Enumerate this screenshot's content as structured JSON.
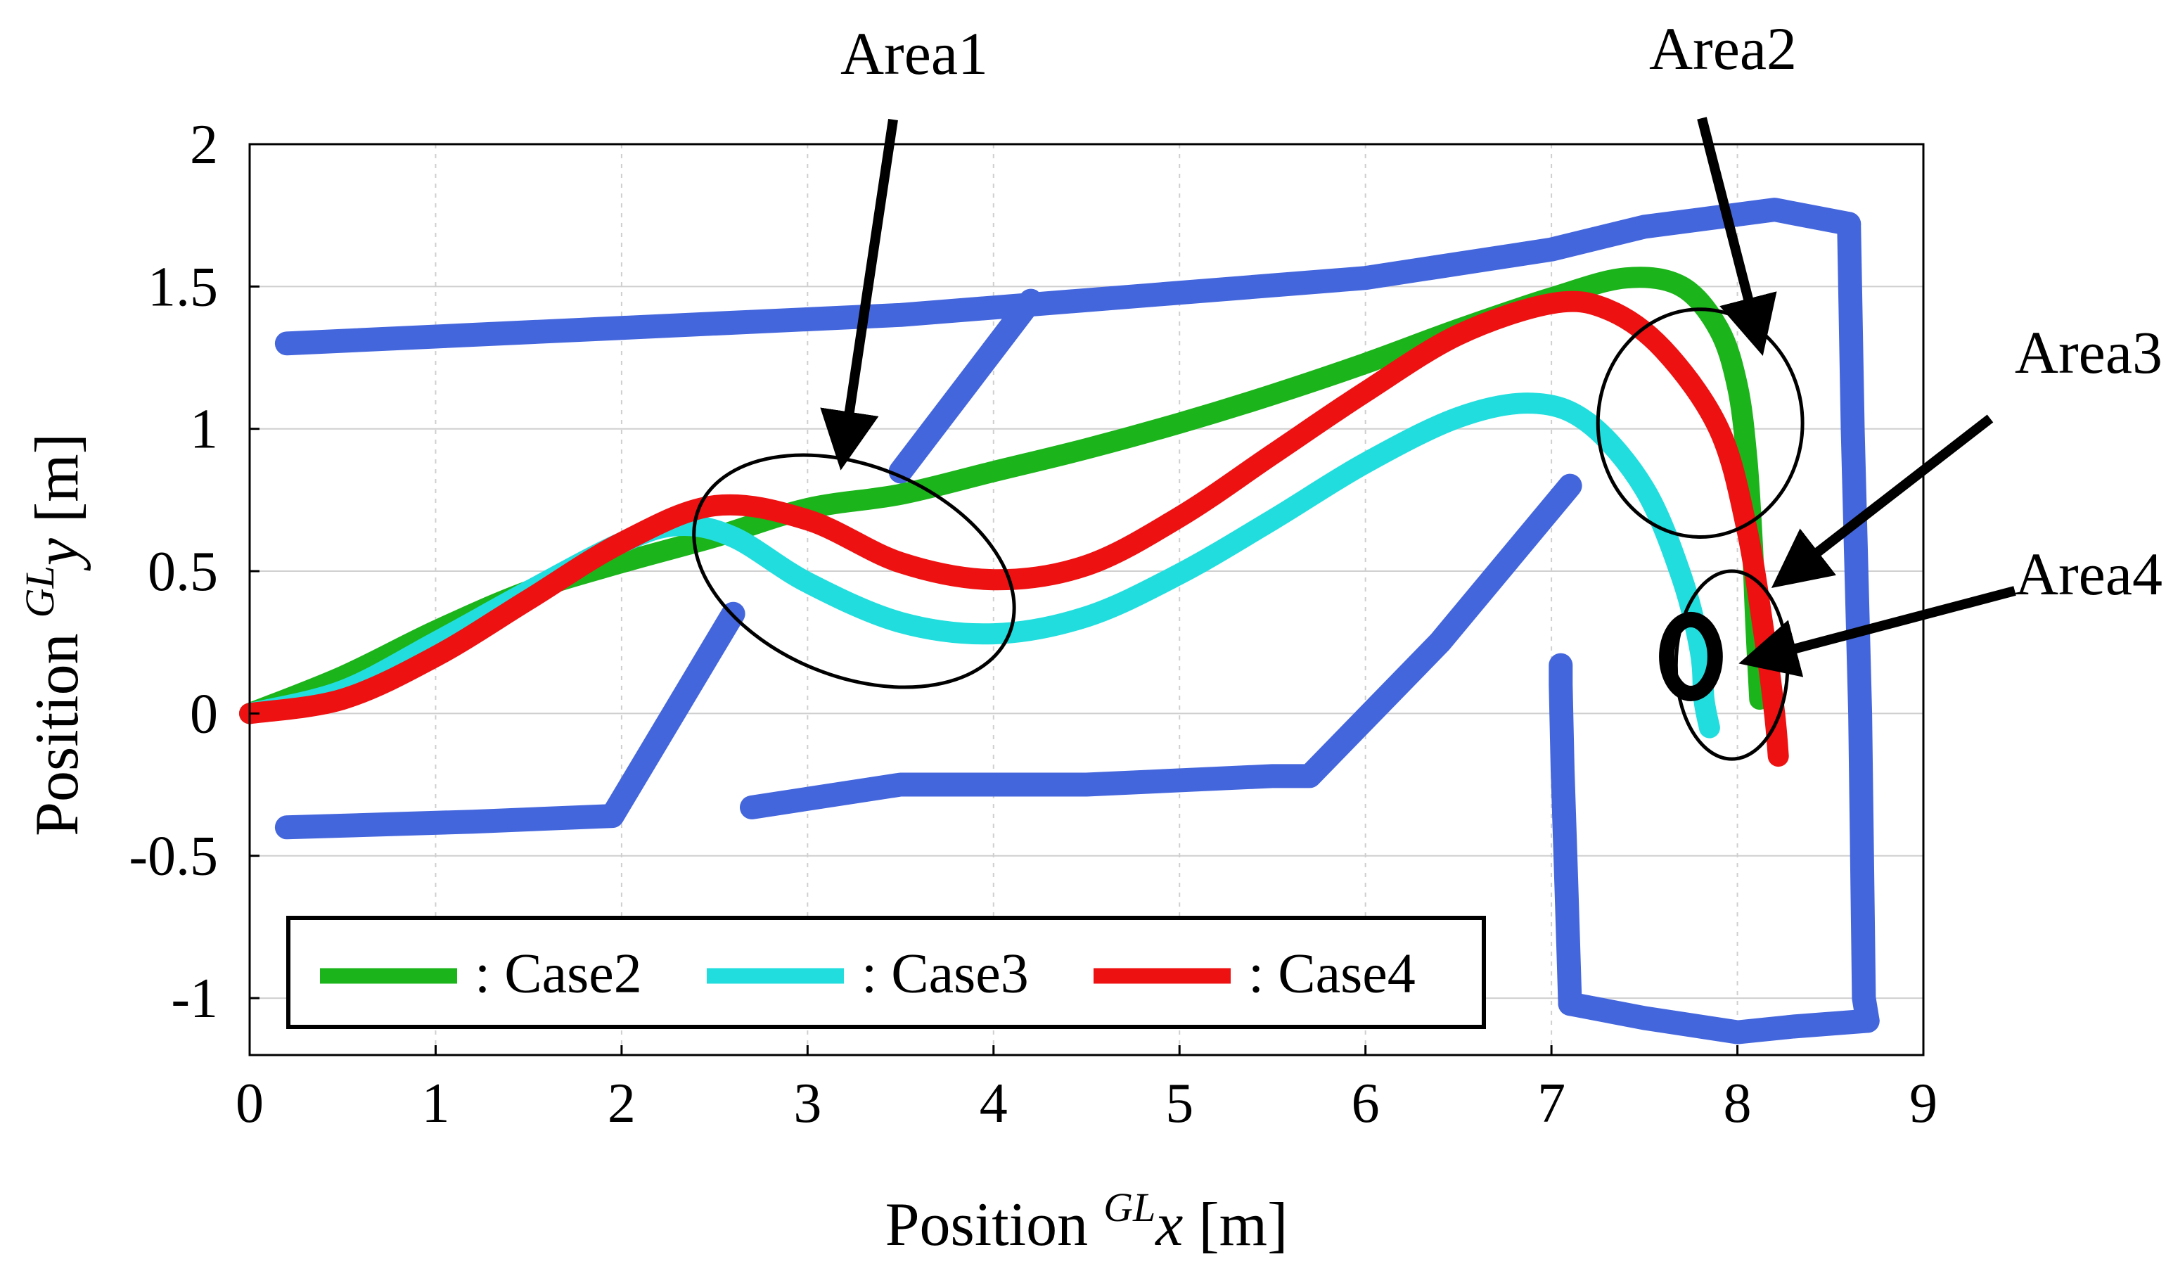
{
  "chart_data": {
    "type": "line",
    "title": "",
    "xlabel": "Position ᴳᴸx [m]",
    "ylabel": "Position ᴳᴸy [m]",
    "xlabel_parts": {
      "prefix": "Position ",
      "sup": "GL",
      "var": "x",
      "unit": " [m]"
    },
    "ylabel_parts": {
      "prefix": "Position ",
      "sup": "GL",
      "var": "y",
      "unit": " [m]"
    },
    "xlim": [
      0,
      9
    ],
    "ylim": [
      -1.2,
      2
    ],
    "grid": true,
    "xticks": [
      0,
      1,
      2,
      3,
      4,
      5,
      6,
      7,
      8,
      9
    ],
    "xtick_labels": [
      "0",
      "1",
      "2",
      "3",
      "4",
      "5",
      "6",
      "7",
      "8",
      "9"
    ],
    "yticks": [
      -1,
      -0.5,
      0,
      0.5,
      1,
      1.5,
      2
    ],
    "ytick_labels": [
      "-1",
      "-0.5",
      "0",
      "0.5",
      "1",
      "1.5",
      "2"
    ],
    "legend_position": "bottom-left",
    "series": [
      {
        "name": "Case2",
        "label": ": Case2",
        "color": "#1bb41b",
        "x": [
          0,
          0.5,
          1.0,
          1.5,
          2.0,
          2.5,
          3.0,
          3.5,
          4.0,
          4.5,
          5.0,
          5.5,
          6.0,
          6.5,
          7.0,
          7.4,
          7.7,
          7.9,
          8.0,
          8.05,
          8.08,
          8.1,
          8.12
        ],
        "y": [
          0,
          0.13,
          0.29,
          0.43,
          0.53,
          0.62,
          0.72,
          0.77,
          0.85,
          0.93,
          1.02,
          1.12,
          1.23,
          1.35,
          1.46,
          1.53,
          1.5,
          1.35,
          1.15,
          0.9,
          0.6,
          0.3,
          0.05
        ]
      },
      {
        "name": "Case3",
        "label": ": Case3",
        "color": "#22dddd",
        "x": [
          0,
          0.5,
          1.0,
          1.5,
          2.0,
          2.3,
          2.6,
          3.0,
          3.5,
          4.0,
          4.5,
          5.0,
          5.5,
          6.0,
          6.5,
          6.9,
          7.2,
          7.5,
          7.7,
          7.8,
          7.82,
          7.85
        ],
        "y": [
          0,
          0.08,
          0.25,
          0.43,
          0.6,
          0.66,
          0.62,
          0.46,
          0.32,
          0.28,
          0.34,
          0.49,
          0.68,
          0.88,
          1.04,
          1.09,
          1.02,
          0.79,
          0.48,
          0.22,
          0.05,
          -0.05
        ]
      },
      {
        "name": "Case4",
        "label": ": Case4",
        "color": "#ee1111",
        "x": [
          0,
          0.5,
          1.0,
          1.5,
          2.0,
          2.5,
          3.0,
          3.5,
          4.0,
          4.5,
          5.0,
          5.5,
          6.0,
          6.5,
          7.0,
          7.3,
          7.6,
          7.9,
          8.05,
          8.15,
          8.2,
          8.22
        ],
        "y": [
          0,
          0.05,
          0.2,
          0.4,
          0.6,
          0.73,
          0.68,
          0.53,
          0.47,
          0.52,
          0.69,
          0.91,
          1.13,
          1.33,
          1.44,
          1.42,
          1.28,
          1.0,
          0.65,
          0.25,
          0.0,
          -0.15
        ]
      }
    ],
    "walls": {
      "name": "Obstacle boundary",
      "color": "#4466dd",
      "segments": [
        {
          "x": [
            0.2,
            3.5,
            6.0,
            7.0,
            7.5,
            8.2,
            8.6
          ],
          "y": [
            1.3,
            1.4,
            1.53,
            1.63,
            1.71,
            1.77,
            1.72
          ]
        },
        {
          "x": [
            8.6,
            8.62,
            8.66,
            8.68,
            8.7
          ],
          "y": [
            1.72,
            1.0,
            0.0,
            -1.0,
            -1.08
          ]
        },
        {
          "x": [
            8.7,
            8.3,
            8.0,
            7.5,
            7.1
          ],
          "y": [
            -1.08,
            -1.1,
            -1.12,
            -1.07,
            -1.02
          ]
        },
        {
          "x": [
            7.1,
            7.08,
            7.06,
            7.05,
            7.05
          ],
          "y": [
            -1.02,
            -0.6,
            -0.2,
            0.1,
            0.17
          ]
        },
        {
          "x": [
            0.2,
            1.2,
            1.95,
            2.6
          ],
          "y": [
            -0.4,
            -0.38,
            -0.36,
            0.35
          ]
        },
        {
          "x": [
            3.5,
            4.2
          ],
          "y": [
            0.85,
            1.45
          ]
        },
        {
          "x": [
            2.7,
            3.5,
            4.5,
            5.5,
            5.7,
            6.4,
            7.1
          ],
          "y": [
            -0.33,
            -0.25,
            -0.25,
            -0.22,
            -0.22,
            0.25,
            0.8
          ]
        }
      ]
    },
    "annotations": [
      {
        "label": "Area1",
        "x": 3.2,
        "y": 0.95
      },
      {
        "label": "Area2",
        "x": 8.1,
        "y": 1.35
      },
      {
        "label": "Area3",
        "x": 8.3,
        "y": 0.5
      },
      {
        "label": "Area4",
        "x": 8.15,
        "y": 0.2
      }
    ],
    "highlight_regions": [
      {
        "name": "Area1",
        "cx": 3.25,
        "cy": 0.5,
        "rx": 0.9,
        "ry": 0.37,
        "angle": 22,
        "weight": "normal"
      },
      {
        "name": "Area2",
        "cx": 7.8,
        "cy": 1.02,
        "rx": 0.55,
        "ry": 0.4,
        "angle": 0,
        "weight": "normal"
      },
      {
        "name": "Area3",
        "cx": 7.97,
        "cy": 0.17,
        "rx": 0.3,
        "ry": 0.33,
        "angle": 0,
        "weight": "normal"
      },
      {
        "name": "Area4",
        "cx": 7.75,
        "cy": 0.2,
        "rx": 0.13,
        "ry": 0.13,
        "angle": 0,
        "weight": "bold"
      }
    ]
  }
}
